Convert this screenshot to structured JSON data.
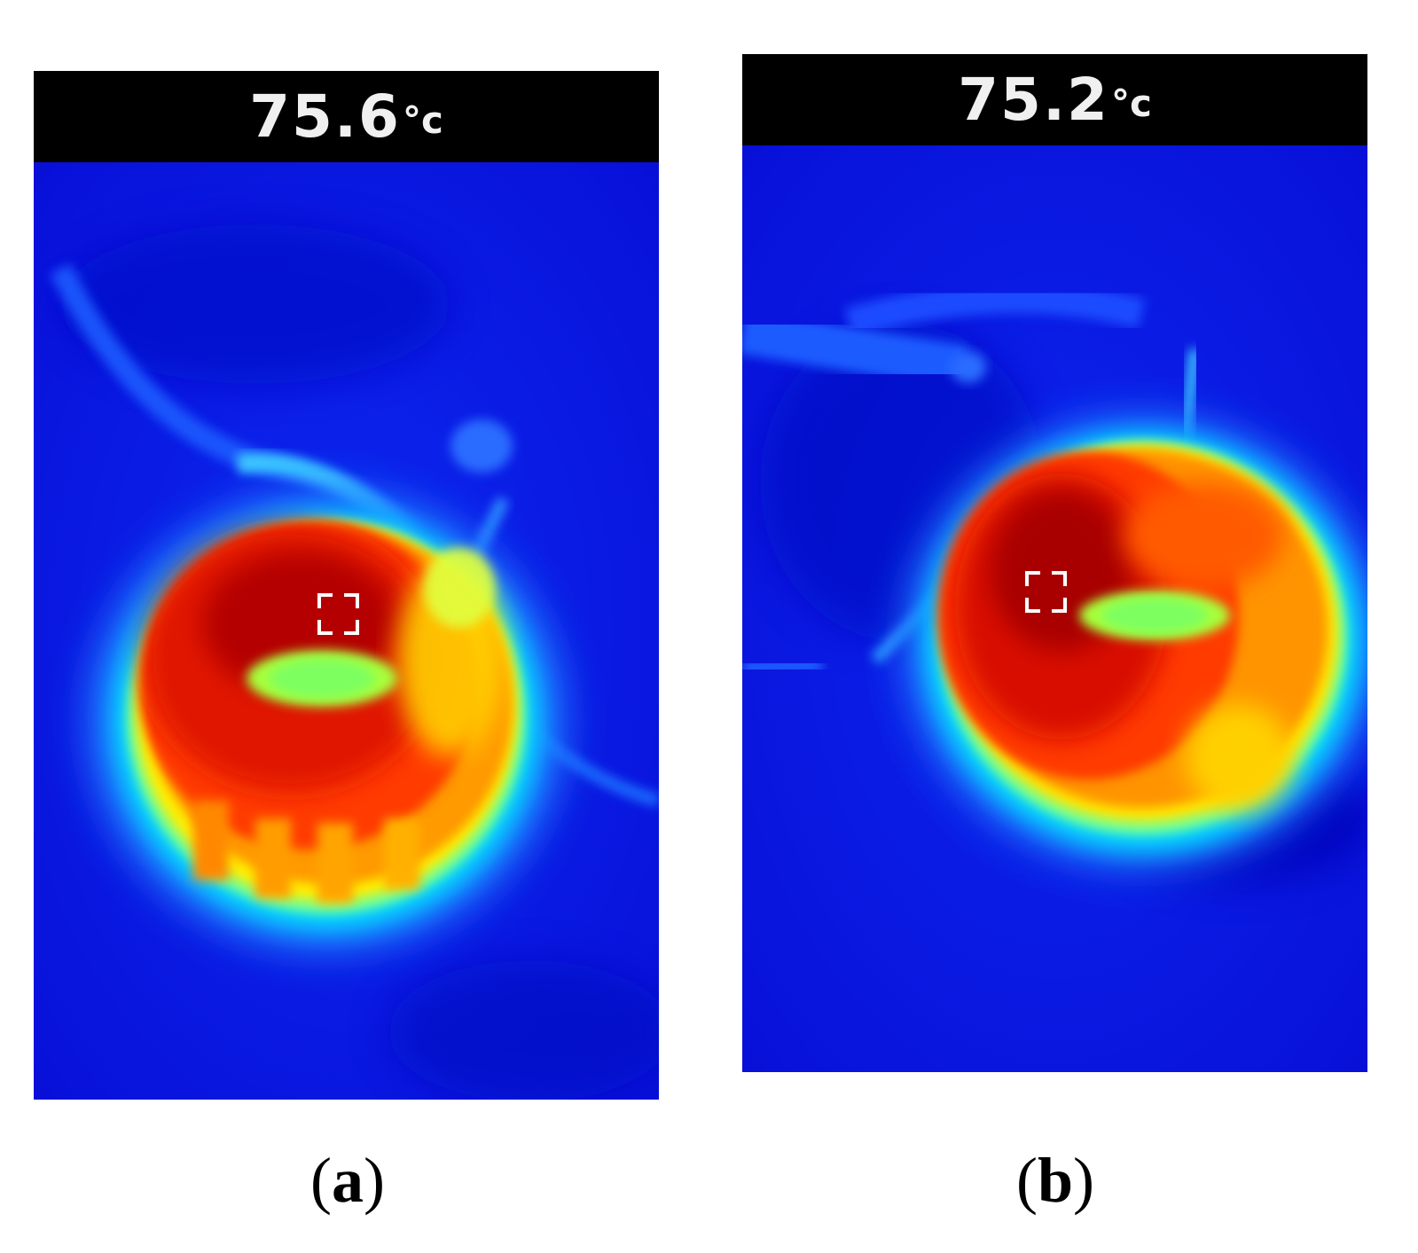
{
  "figure": {
    "panels": [
      {
        "id": "a",
        "caption": "a",
        "temperature_value": "75.6",
        "temperature_unit": "°c",
        "palette": "rainbow-thermal",
        "cursor_icon": "crosshair-bracket-icon"
      },
      {
        "id": "b",
        "caption": "b",
        "temperature_value": "75.2",
        "temperature_unit": "°c",
        "palette": "rainbow-thermal",
        "cursor_icon": "crosshair-bracket-icon"
      }
    ],
    "colors": {
      "background_cold": "#0a14e6",
      "hot": "#c80000",
      "warm": "#ff8a00",
      "mid": "#ffee00",
      "cool": "#00ffaa",
      "readout_bar": "#000000",
      "readout_text": "#ffffff"
    }
  }
}
